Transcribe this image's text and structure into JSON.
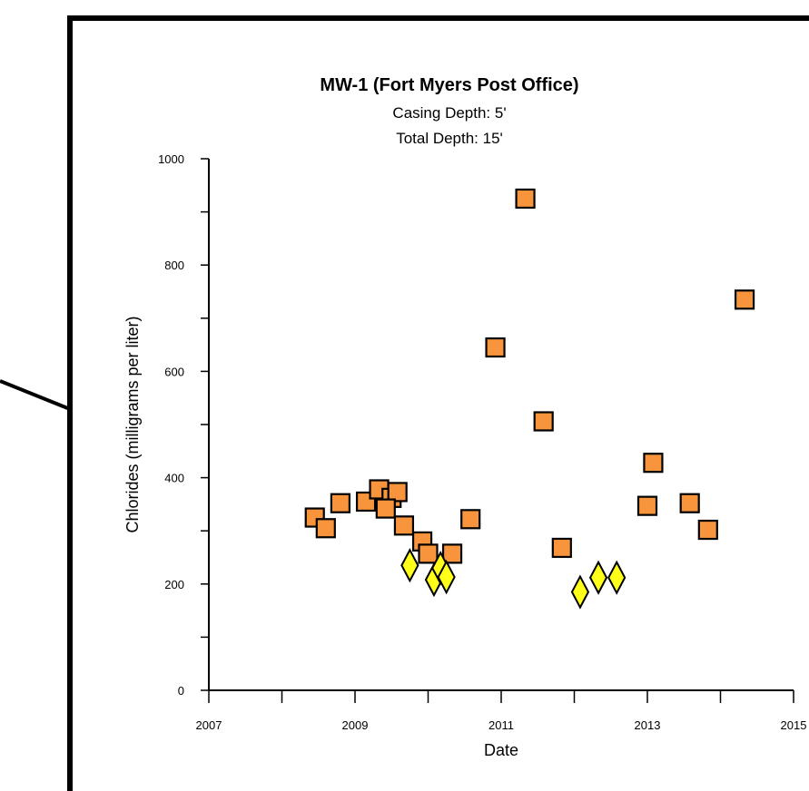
{
  "chart_data": {
    "type": "scatter",
    "title": "MW-1 (Fort Myers Post Office)",
    "subtitle_lines": [
      "Casing Depth:  5'",
      "Total Depth:  15'"
    ],
    "xlabel": "Date",
    "ylabel": "Chlorides (milligrams per liter)",
    "xlim": [
      2007,
      2015
    ],
    "ylim": [
      0,
      1000
    ],
    "x_ticks": [
      "2007",
      "2009",
      "2011",
      "2013",
      "2015"
    ],
    "y_ticks": [
      "0",
      "200",
      "400",
      "600",
      "800",
      "1000"
    ],
    "grid": false,
    "series": [
      {
        "marker": "square",
        "color": "#F7943C",
        "points": [
          {
            "x": 2008.45,
            "y": 325
          },
          {
            "x": 2008.6,
            "y": 305
          },
          {
            "x": 2008.8,
            "y": 352
          },
          {
            "x": 2009.15,
            "y": 355
          },
          {
            "x": 2009.33,
            "y": 378
          },
          {
            "x": 2009.5,
            "y": 362
          },
          {
            "x": 2009.58,
            "y": 373
          },
          {
            "x": 2009.42,
            "y": 342
          },
          {
            "x": 2009.67,
            "y": 310
          },
          {
            "x": 2009.92,
            "y": 280
          },
          {
            "x": 2010.0,
            "y": 257
          },
          {
            "x": 2010.33,
            "y": 257
          },
          {
            "x": 2010.58,
            "y": 322
          },
          {
            "x": 2010.92,
            "y": 645
          },
          {
            "x": 2011.33,
            "y": 925
          },
          {
            "x": 2011.58,
            "y": 506
          },
          {
            "x": 2011.83,
            "y": 268
          },
          {
            "x": 2013.0,
            "y": 347
          },
          {
            "x": 2013.08,
            "y": 428
          },
          {
            "x": 2013.58,
            "y": 352
          },
          {
            "x": 2013.83,
            "y": 302
          },
          {
            "x": 2014.33,
            "y": 735
          }
        ]
      },
      {
        "marker": "diamond",
        "color": "#FFFF1A",
        "points": [
          {
            "x": 2009.75,
            "y": 235
          },
          {
            "x": 2010.08,
            "y": 208
          },
          {
            "x": 2010.17,
            "y": 230
          },
          {
            "x": 2010.25,
            "y": 213
          },
          {
            "x": 2012.08,
            "y": 185
          },
          {
            "x": 2012.33,
            "y": 212
          },
          {
            "x": 2012.58,
            "y": 212
          }
        ]
      }
    ]
  }
}
